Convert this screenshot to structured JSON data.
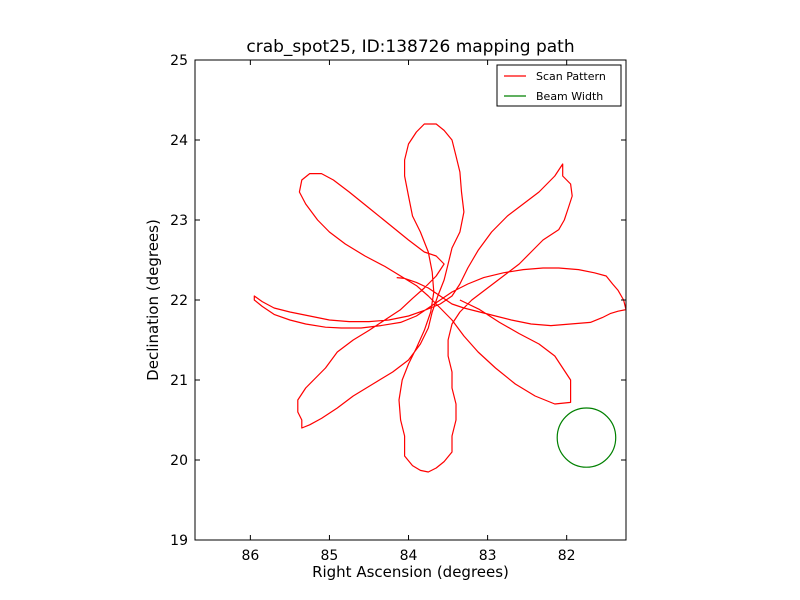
{
  "chart_data": {
    "type": "line",
    "title": "crab_spot25, ID:138726 mapping path",
    "xlabel": "Right Ascension (degrees)",
    "ylabel": "Declination (degrees)",
    "xlim": [
      86.7,
      81.25
    ],
    "ylim": [
      19,
      25
    ],
    "x_inverted": true,
    "xticks": [
      86,
      85,
      84,
      83,
      82
    ],
    "yticks": [
      19,
      20,
      21,
      22,
      23,
      24,
      25
    ],
    "grid": false,
    "legend": {
      "location": "upper right",
      "entries": [
        "Scan Pattern",
        "Beam Width"
      ]
    },
    "series": [
      {
        "name": "Scan Pattern",
        "color": "#ff0000",
        "points": [
          [
            84.15,
            22.28
          ],
          [
            84.05,
            22.27
          ],
          [
            83.9,
            22.22
          ],
          [
            83.75,
            22.15
          ],
          [
            83.6,
            22.05
          ],
          [
            83.45,
            21.95
          ],
          [
            83.3,
            21.9
          ],
          [
            83.1,
            21.85
          ],
          [
            82.9,
            21.8
          ],
          [
            82.7,
            21.75
          ],
          [
            82.45,
            21.7
          ],
          [
            82.2,
            21.68
          ],
          [
            81.95,
            21.7
          ],
          [
            81.7,
            21.72
          ],
          [
            81.55,
            21.78
          ],
          [
            81.45,
            21.83
          ],
          [
            81.35,
            21.86
          ],
          [
            81.25,
            21.88
          ],
          [
            81.28,
            22.0
          ],
          [
            81.35,
            22.12
          ],
          [
            81.42,
            22.2
          ],
          [
            81.5,
            22.3
          ],
          [
            81.65,
            22.34
          ],
          [
            81.85,
            22.38
          ],
          [
            82.1,
            22.4
          ],
          [
            82.3,
            22.4
          ],
          [
            82.55,
            22.38
          ],
          [
            82.8,
            22.34
          ],
          [
            83.05,
            22.28
          ],
          [
            83.25,
            22.2
          ],
          [
            83.45,
            22.1
          ],
          [
            83.6,
            22.0
          ],
          [
            83.75,
            21.9
          ],
          [
            83.9,
            21.8
          ],
          [
            84.1,
            21.72
          ],
          [
            84.35,
            21.68
          ],
          [
            84.6,
            21.65
          ],
          [
            84.85,
            21.65
          ],
          [
            85.05,
            21.66
          ],
          [
            85.3,
            21.7
          ],
          [
            85.5,
            21.75
          ],
          [
            85.7,
            21.82
          ],
          [
            85.85,
            21.92
          ],
          [
            85.95,
            22.0
          ],
          [
            85.95,
            22.05
          ],
          [
            85.85,
            21.98
          ],
          [
            85.7,
            21.9
          ],
          [
            85.5,
            21.85
          ],
          [
            85.25,
            21.8
          ],
          [
            85.0,
            21.75
          ],
          [
            84.75,
            21.73
          ],
          [
            84.5,
            21.73
          ],
          [
            84.25,
            21.75
          ],
          [
            84.0,
            21.8
          ],
          [
            83.8,
            21.87
          ],
          [
            83.6,
            21.95
          ],
          [
            83.45,
            22.05
          ],
          [
            83.35,
            22.2
          ],
          [
            83.25,
            22.4
          ],
          [
            83.12,
            22.62
          ],
          [
            82.95,
            22.85
          ],
          [
            82.75,
            23.05
          ],
          [
            82.55,
            23.2
          ],
          [
            82.35,
            23.35
          ],
          [
            82.15,
            23.55
          ],
          [
            82.05,
            23.7
          ],
          [
            82.05,
            23.55
          ],
          [
            81.95,
            23.45
          ],
          [
            81.93,
            23.3
          ],
          [
            81.98,
            23.15
          ],
          [
            82.03,
            23.0
          ],
          [
            82.1,
            22.88
          ],
          [
            82.3,
            22.75
          ],
          [
            82.45,
            22.6
          ],
          [
            82.6,
            22.45
          ],
          [
            82.8,
            22.3
          ],
          [
            83.0,
            22.15
          ],
          [
            83.2,
            22.0
          ],
          [
            83.35,
            21.85
          ],
          [
            83.45,
            21.7
          ],
          [
            83.5,
            21.5
          ],
          [
            83.5,
            21.3
          ],
          [
            83.45,
            21.1
          ],
          [
            83.45,
            20.9
          ],
          [
            83.4,
            20.7
          ],
          [
            83.4,
            20.5
          ],
          [
            83.45,
            20.3
          ],
          [
            83.45,
            20.1
          ],
          [
            83.55,
            19.98
          ],
          [
            83.65,
            19.9
          ],
          [
            83.75,
            19.85
          ],
          [
            83.85,
            19.87
          ],
          [
            83.95,
            19.93
          ],
          [
            84.05,
            20.05
          ],
          [
            84.05,
            20.3
          ],
          [
            84.1,
            20.5
          ],
          [
            84.12,
            20.75
          ],
          [
            84.08,
            21.0
          ],
          [
            84.0,
            21.2
          ],
          [
            83.9,
            21.4
          ],
          [
            83.8,
            21.62
          ],
          [
            83.72,
            21.85
          ],
          [
            83.68,
            22.1
          ],
          [
            83.7,
            22.35
          ],
          [
            83.75,
            22.6
          ],
          [
            83.85,
            22.85
          ],
          [
            83.95,
            23.05
          ],
          [
            84.0,
            23.3
          ],
          [
            84.05,
            23.55
          ],
          [
            84.05,
            23.75
          ],
          [
            84.0,
            23.95
          ],
          [
            83.9,
            24.1
          ],
          [
            83.8,
            24.2
          ],
          [
            83.65,
            24.2
          ],
          [
            83.55,
            24.12
          ],
          [
            83.45,
            24.0
          ],
          [
            83.4,
            23.8
          ],
          [
            83.35,
            23.6
          ],
          [
            83.33,
            23.35
          ],
          [
            83.3,
            23.1
          ],
          [
            83.35,
            22.85
          ],
          [
            83.45,
            22.65
          ],
          [
            83.5,
            22.45
          ],
          [
            83.55,
            22.25
          ],
          [
            83.63,
            22.05
          ],
          [
            83.7,
            21.85
          ],
          [
            83.75,
            21.65
          ],
          [
            83.85,
            21.45
          ],
          [
            84.0,
            21.25
          ],
          [
            84.2,
            21.1
          ],
          [
            84.45,
            20.95
          ],
          [
            84.7,
            20.8
          ],
          [
            84.9,
            20.65
          ],
          [
            85.1,
            20.52
          ],
          [
            85.25,
            20.44
          ],
          [
            85.35,
            20.4
          ],
          [
            85.35,
            20.5
          ],
          [
            85.4,
            20.6
          ],
          [
            85.4,
            20.75
          ],
          [
            85.3,
            20.9
          ],
          [
            85.2,
            21.0
          ],
          [
            85.05,
            21.15
          ],
          [
            84.9,
            21.35
          ],
          [
            84.7,
            21.5
          ],
          [
            84.5,
            21.62
          ],
          [
            84.3,
            21.75
          ],
          [
            84.1,
            21.88
          ],
          [
            83.95,
            22.02
          ],
          [
            83.8,
            22.15
          ],
          [
            83.65,
            22.3
          ],
          [
            83.55,
            22.45
          ],
          [
            83.65,
            22.55
          ],
          [
            83.8,
            22.6
          ],
          [
            84.0,
            22.75
          ],
          [
            84.25,
            22.95
          ],
          [
            84.5,
            23.15
          ],
          [
            84.75,
            23.35
          ],
          [
            84.95,
            23.5
          ],
          [
            85.1,
            23.58
          ],
          [
            85.25,
            23.58
          ],
          [
            85.35,
            23.5
          ],
          [
            85.38,
            23.35
          ],
          [
            85.3,
            23.2
          ],
          [
            85.15,
            23.0
          ],
          [
            85.0,
            22.85
          ],
          [
            84.8,
            22.7
          ],
          [
            84.55,
            22.55
          ],
          [
            84.3,
            22.42
          ],
          [
            84.1,
            22.3
          ],
          [
            83.9,
            22.18
          ],
          [
            83.75,
            22.05
          ],
          [
            83.6,
            21.9
          ],
          [
            83.45,
            21.75
          ],
          [
            83.3,
            21.55
          ],
          [
            83.12,
            21.35
          ],
          [
            82.9,
            21.15
          ],
          [
            82.65,
            20.95
          ],
          [
            82.4,
            20.8
          ],
          [
            82.15,
            20.7
          ],
          [
            81.95,
            20.72
          ],
          [
            81.95,
            20.85
          ],
          [
            81.95,
            21.0
          ],
          [
            82.05,
            21.15
          ],
          [
            82.15,
            21.3
          ],
          [
            82.35,
            21.45
          ],
          [
            82.6,
            21.58
          ],
          [
            82.85,
            21.72
          ],
          [
            83.1,
            21.88
          ],
          [
            83.35,
            22.0
          ]
        ]
      },
      {
        "name": "Beam Width",
        "color": "#008000",
        "shape": "circle",
        "center": [
          81.75,
          20.28
        ],
        "radius_deg": 0.37
      }
    ]
  }
}
